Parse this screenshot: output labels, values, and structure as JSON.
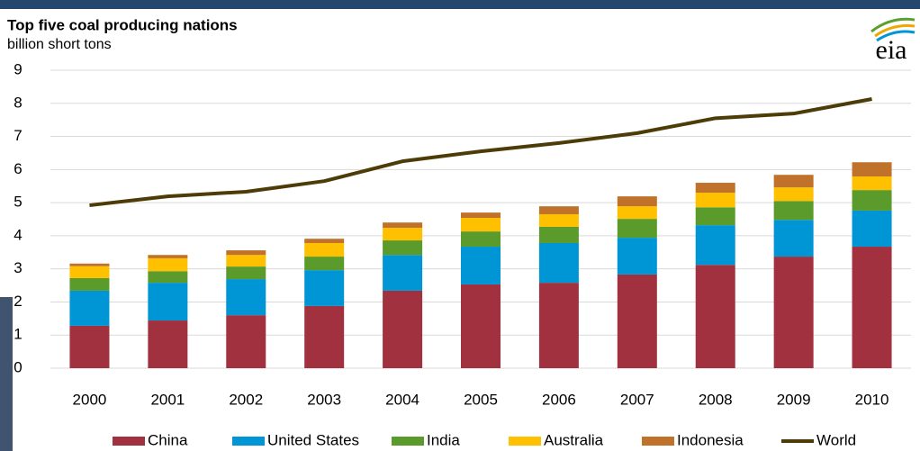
{
  "chart_data": {
    "type": "bar",
    "stacked": true,
    "title": "Top five coal producing nations",
    "subtitle": "billion short tons",
    "logo": "eia",
    "categories": [
      "2000",
      "2001",
      "2002",
      "2003",
      "2004",
      "2005",
      "2006",
      "2007",
      "2008",
      "2009",
      "2010"
    ],
    "series": [
      {
        "name": "China",
        "color": "#a2313f",
        "values": [
          1.28,
          1.44,
          1.6,
          1.88,
          2.34,
          2.53,
          2.58,
          2.83,
          3.12,
          3.37,
          3.67
        ]
      },
      {
        "name": "United States",
        "color": "#0096d6",
        "values": [
          1.06,
          1.14,
          1.09,
          1.08,
          1.08,
          1.14,
          1.2,
          1.11,
          1.2,
          1.11,
          1.09
        ]
      },
      {
        "name": "India",
        "color": "#5b9b2b",
        "values": [
          0.38,
          0.35,
          0.38,
          0.41,
          0.44,
          0.46,
          0.49,
          0.57,
          0.54,
          0.57,
          0.62
        ]
      },
      {
        "name": "Australia",
        "color": "#ffc000",
        "values": [
          0.36,
          0.39,
          0.35,
          0.41,
          0.38,
          0.41,
          0.38,
          0.38,
          0.44,
          0.41,
          0.41
        ]
      },
      {
        "name": "Indonesia",
        "color": "#c0722a",
        "values": [
          0.08,
          0.1,
          0.14,
          0.13,
          0.16,
          0.16,
          0.24,
          0.3,
          0.3,
          0.38,
          0.43
        ]
      },
      {
        "name": "World",
        "color": "#4d3b08",
        "type": "line",
        "values": [
          4.92,
          5.19,
          5.33,
          5.65,
          6.25,
          6.55,
          6.8,
          7.1,
          7.55,
          7.69,
          8.13
        ]
      }
    ],
    "ylim": [
      0,
      9
    ],
    "yticks": [
      0,
      1,
      2,
      3,
      4,
      5,
      6,
      7,
      8,
      9
    ],
    "grid": true,
    "legend": "bottom"
  }
}
